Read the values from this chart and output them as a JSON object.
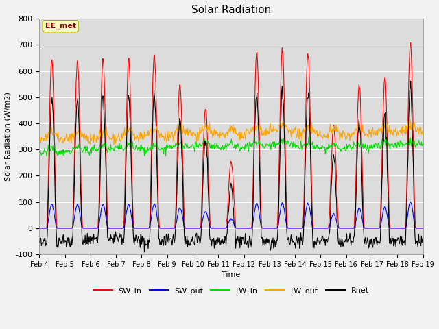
{
  "title": "Solar Radiation",
  "ylabel": "Solar Radiation (W/m2)",
  "xlabel": "Time",
  "ylim": [
    -100,
    800
  ],
  "yticks": [
    -100,
    0,
    100,
    200,
    300,
    400,
    500,
    600,
    700,
    800
  ],
  "xtick_labels": [
    "Feb 4",
    "Feb 5",
    "Feb 6",
    "Feb 7",
    "Feb 8",
    "Feb 9",
    "Feb 10",
    "Feb 11",
    "Feb 12",
    "Feb 13",
    "Feb 14",
    "Feb 15",
    "Feb 16",
    "Feb 17",
    "Feb 18",
    "Feb 19"
  ],
  "legend_entries": [
    "SW_in",
    "SW_out",
    "LW_in",
    "LW_out",
    "Rnet"
  ],
  "colors": {
    "SW_in": "#FF0000",
    "SW_out": "#0000FF",
    "LW_in": "#00DD00",
    "LW_out": "#FFA500",
    "Rnet": "#000000"
  },
  "annotation_text": "EE_met",
  "annotation_color": "#8B0000",
  "plot_bg_color": "#DCDCDC",
  "fig_bg_color": "#F2F2F2",
  "n_days": 15,
  "hours_per_day": 24,
  "dt_hours": 0.5,
  "sw_in_peaks": [
    650,
    645,
    648,
    650,
    665,
    548,
    460,
    250,
    672,
    685,
    670,
    393,
    550,
    578,
    705
  ],
  "lw_in_bases": [
    290,
    295,
    300,
    305,
    300,
    310,
    315,
    310,
    315,
    320,
    310,
    305,
    310,
    315,
    320
  ],
  "lw_out_bases": [
    340,
    342,
    345,
    345,
    350,
    360,
    360,
    355,
    365,
    370,
    360,
    355,
    360,
    365,
    370
  ]
}
